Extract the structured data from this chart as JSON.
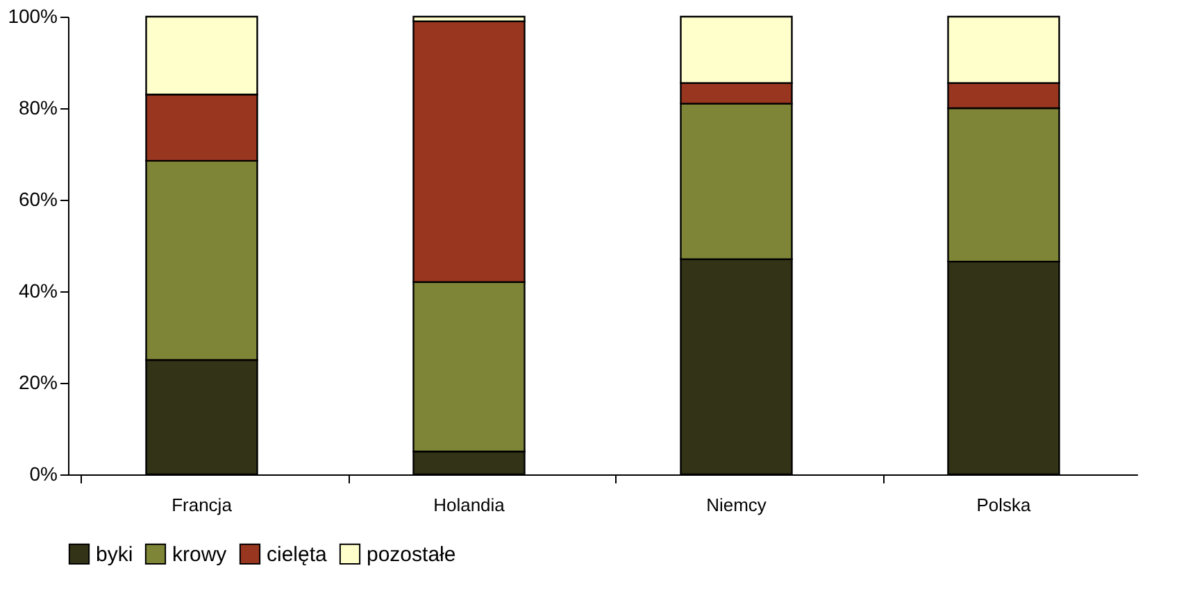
{
  "chart_data": {
    "type": "bar",
    "stacked": true,
    "categories": [
      "Francja",
      "Holandia",
      "Niemcy",
      "Polska"
    ],
    "series": [
      {
        "name": "byki",
        "color": "#333318",
        "values": [
          25,
          5,
          47,
          46.5
        ]
      },
      {
        "name": "krowy",
        "color": "#7f8536",
        "values": [
          43.5,
          37,
          34,
          33.5
        ]
      },
      {
        "name": "cielęta",
        "color": "#993620",
        "values": [
          14.5,
          57,
          4.5,
          5.5
        ]
      },
      {
        "name": "pozostałe",
        "color": "#ffffcc",
        "values": [
          17,
          1,
          14.5,
          14.5
        ]
      }
    ],
    "ylim": [
      0,
      100
    ],
    "yticks": [
      {
        "value": 0,
        "label": "0%"
      },
      {
        "value": 20,
        "label": "20%"
      },
      {
        "value": 40,
        "label": "40%"
      },
      {
        "value": 60,
        "label": "60%"
      },
      {
        "value": 80,
        "label": "80%"
      },
      {
        "value": 100,
        "label": "100%"
      }
    ],
    "grid": false,
    "legend": "bottom"
  }
}
